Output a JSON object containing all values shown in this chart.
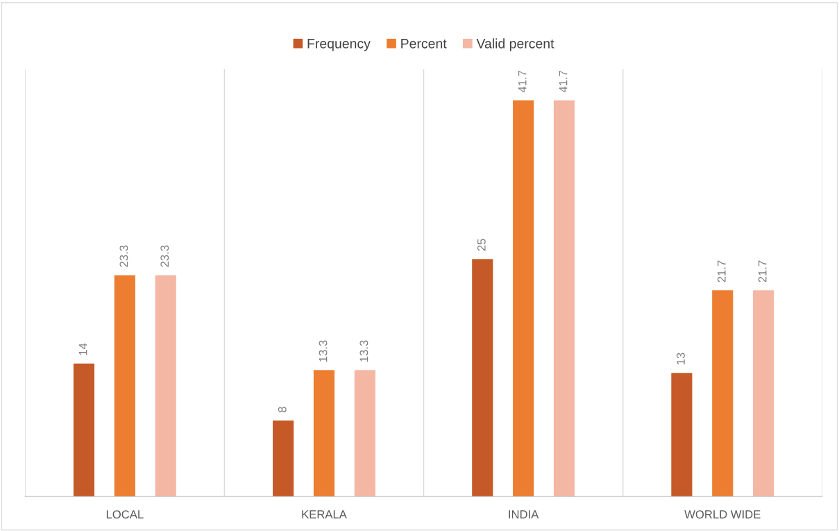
{
  "chart_data": {
    "type": "bar",
    "categories": [
      "LOCAL",
      "KERALA",
      "INDIA",
      "WORLD WIDE"
    ],
    "series": [
      {
        "name": "Frequency",
        "color": "#c55a28",
        "values": [
          14,
          8,
          25,
          13
        ]
      },
      {
        "name": "Percent",
        "color": "#ed7d31",
        "values": [
          23.3,
          13.3,
          41.7,
          21.7
        ]
      },
      {
        "name": "Valid percent",
        "color": "#f4b7a4",
        "values": [
          23.3,
          13.3,
          41.7,
          21.7
        ]
      }
    ],
    "ylim": [
      0,
      45
    ],
    "tick_labels": "x",
    "data_labels": true,
    "grid": "x",
    "legend": "top"
  }
}
